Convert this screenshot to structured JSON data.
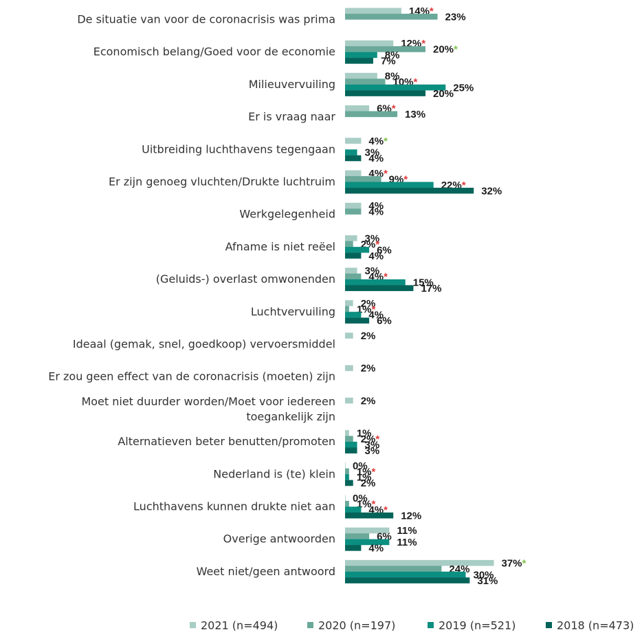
{
  "chart_data": {
    "type": "bar",
    "orientation": "horizontal",
    "grid": false,
    "legend_position": "bottom",
    "series": [
      {
        "name": "2021 (n=494)",
        "color": "#a8cdc4"
      },
      {
        "name": "2020 (n=197)",
        "color": "#6aa99a"
      },
      {
        "name": "2019 (n=521)",
        "color": "#0b8f80"
      },
      {
        "name": "2018 (n=473)",
        "color": "#05645a"
      }
    ],
    "marker_colors": {
      "red": "#e03a3a",
      "green": "#7fc24a"
    },
    "categories": [
      {
        "label": [
          "De situatie van voor de coronacrisis was prima"
        ],
        "values": [
          14,
          23,
          null,
          null
        ],
        "markers": [
          "red",
          "",
          "",
          ""
        ]
      },
      {
        "label": [
          "Economisch belang/Goed voor de economie"
        ],
        "values": [
          12,
          20,
          8,
          7
        ],
        "markers": [
          "red",
          "green",
          "",
          ""
        ]
      },
      {
        "label": [
          "Milieuvervuiling"
        ],
        "values": [
          8,
          10,
          25,
          20
        ],
        "markers": [
          "",
          "red",
          "",
          ""
        ]
      },
      {
        "label": [
          "Er is vraag naar"
        ],
        "values": [
          6,
          13,
          null,
          null
        ],
        "markers": [
          "red",
          "",
          "",
          ""
        ]
      },
      {
        "label": [
          "Uitbreiding luchthavens tegengaan"
        ],
        "values": [
          4,
          null,
          3,
          4
        ],
        "markers": [
          "green",
          "",
          "",
          ""
        ]
      },
      {
        "label": [
          "Er zijn genoeg vluchten/Drukte luchtruim"
        ],
        "values": [
          4,
          9,
          22,
          32
        ],
        "markers": [
          "red",
          "red",
          "red",
          ""
        ]
      },
      {
        "label": [
          "Werkgelegenheid"
        ],
        "values": [
          4,
          4,
          null,
          null
        ],
        "markers": [
          "",
          "",
          "",
          ""
        ]
      },
      {
        "label": [
          "Afname is niet reëel"
        ],
        "values": [
          3,
          2,
          6,
          4
        ],
        "markers": [
          "",
          "red",
          "",
          ""
        ]
      },
      {
        "label": [
          "(Geluids-) overlast omwonenden"
        ],
        "values": [
          3,
          4,
          15,
          17
        ],
        "markers": [
          "",
          "red",
          "",
          ""
        ]
      },
      {
        "label": [
          "Luchtvervuiling"
        ],
        "values": [
          2,
          1,
          4,
          6
        ],
        "markers": [
          "",
          "red",
          "",
          ""
        ]
      },
      {
        "label": [
          "Ideaal (gemak, snel, goedkoop) vervoersmiddel"
        ],
        "values": [
          2,
          null,
          null,
          null
        ],
        "markers": [
          "",
          "",
          "",
          ""
        ]
      },
      {
        "label": [
          "Er zou geen effect van de coronacrisis (moeten) zijn"
        ],
        "values": [
          2,
          null,
          null,
          null
        ],
        "markers": [
          "",
          "",
          "",
          ""
        ]
      },
      {
        "label": [
          "Moet niet duurder worden/Moet voor iedereen",
          "toegankelijk zijn"
        ],
        "values": [
          2,
          null,
          null,
          null
        ],
        "markers": [
          "",
          "",
          "",
          ""
        ]
      },
      {
        "label": [
          "Alternatieven beter benutten/promoten"
        ],
        "values": [
          1,
          2,
          3,
          3
        ],
        "markers": [
          "",
          "red",
          "",
          ""
        ]
      },
      {
        "label": [
          "Nederland is (te) klein"
        ],
        "values": [
          0,
          1,
          1,
          2
        ],
        "markers": [
          "",
          "red",
          "",
          ""
        ]
      },
      {
        "label": [
          "Luchthavens kunnen drukte niet aan"
        ],
        "values": [
          0,
          1,
          4,
          12
        ],
        "markers": [
          "",
          "red",
          "red",
          ""
        ]
      },
      {
        "label": [
          "Overige antwoorden"
        ],
        "values": [
          11,
          6,
          11,
          4
        ],
        "markers": [
          "",
          "",
          "",
          ""
        ]
      },
      {
        "label": [
          "Weet niet/geen antwoord"
        ],
        "values": [
          37,
          24,
          30,
          31
        ],
        "markers": [
          "green",
          "",
          "",
          ""
        ]
      }
    ]
  }
}
